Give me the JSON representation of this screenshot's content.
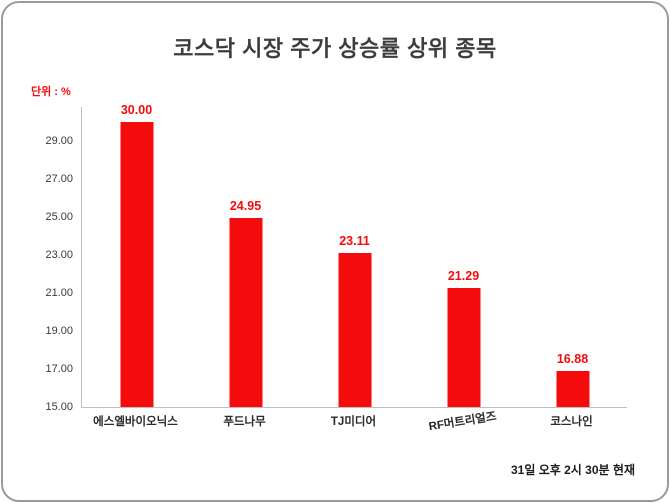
{
  "chart_data": {
    "type": "bar",
    "title": "코스닥 시장 주가 상승률 상위 종목",
    "unit_label": "단위 : %",
    "footnote": "31일 오후 2시 30분 현재",
    "categories": [
      "에스엘바이오닉스",
      "푸드나무",
      "TJ미디어",
      "RF머트리얼즈",
      "코스나인"
    ],
    "values": [
      30.0,
      24.95,
      23.11,
      21.29,
      16.88
    ],
    "value_labels": [
      "30.00",
      "24.95",
      "23.11",
      "21.29",
      "16.88"
    ],
    "yticks": [
      "15.00",
      "17.00",
      "19.00",
      "21.00",
      "23.00",
      "25.00",
      "27.00",
      "29.00"
    ],
    "ylim": [
      15,
      30.8
    ],
    "bar_color": "#f40b0b",
    "value_label_color": "#f40b0b",
    "grid": false,
    "legend": false,
    "xlabel": "",
    "ylabel": ""
  }
}
